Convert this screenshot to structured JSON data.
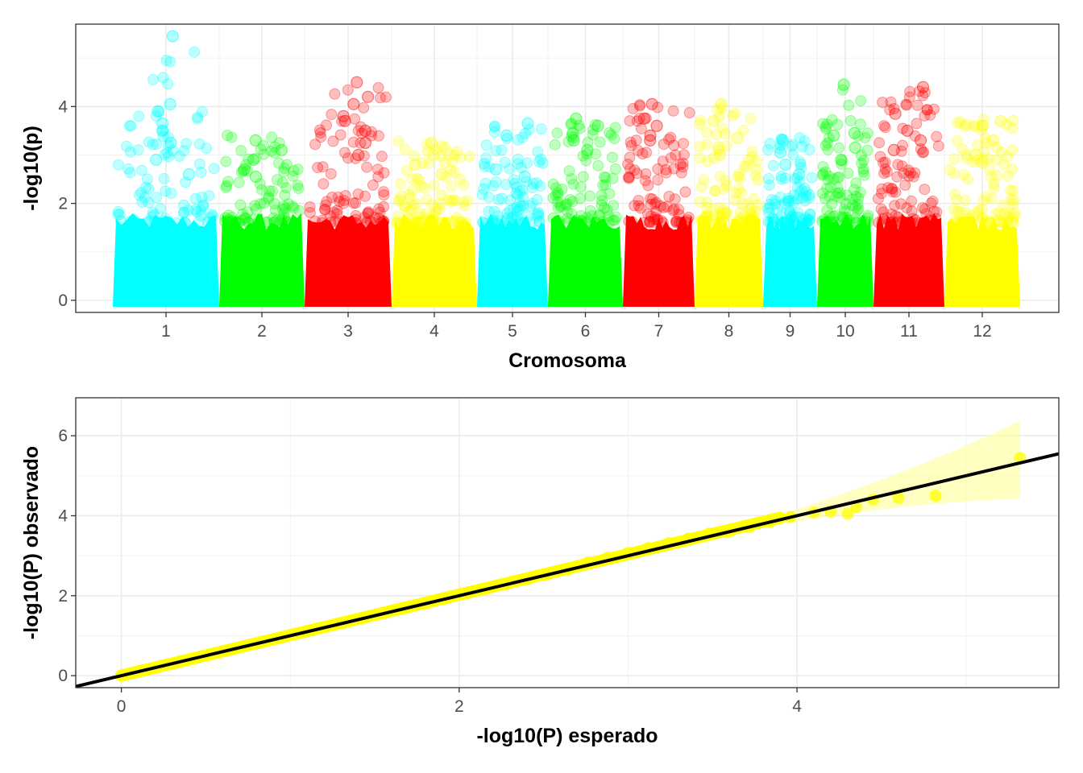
{
  "chart_data": [
    {
      "type": "scatter",
      "subtype": "manhattan",
      "xlabel": "Cromosoma",
      "ylabel": "-log10(p)",
      "ylim": [
        -0.25,
        5.7
      ],
      "yticks": [
        0,
        2,
        4
      ],
      "grid": true,
      "legend": "none",
      "chromosomes": [
        {
          "label": "1",
          "color": "#00FFFF",
          "peak": 5.45,
          "top_hits": [
            5.45,
            4.05,
            3.9,
            3.65,
            3.5,
            3.25,
            2.9,
            2.6
          ]
        },
        {
          "label": "2",
          "color": "#00FF00",
          "peak": 3.3,
          "top_hits": [
            3.3,
            3.1,
            2.9,
            2.7,
            2.55
          ]
        },
        {
          "label": "3",
          "color": "#FF0000",
          "peak": 4.5,
          "top_hits": [
            4.5,
            4.2,
            4.05,
            3.8,
            3.7,
            3.5,
            3.25,
            3.0
          ]
        },
        {
          "label": "4",
          "color": "#FFFF00",
          "peak": 3.25,
          "top_hits": [
            3.25,
            3.0,
            2.8,
            2.6
          ]
        },
        {
          "label": "5",
          "color": "#00FFFF",
          "peak": 3.65,
          "top_hits": [
            3.65,
            3.4,
            2.7,
            2.55
          ]
        },
        {
          "label": "6",
          "color": "#00FF00",
          "peak": 3.75,
          "top_hits": [
            3.75,
            3.6,
            3.45,
            3.3,
            3.1
          ]
        },
        {
          "label": "7",
          "color": "#FF0000",
          "peak": 4.05,
          "top_hits": [
            4.05,
            3.75,
            3.6,
            3.4,
            3.3
          ]
        },
        {
          "label": "8",
          "color": "#FFFF00",
          "peak": 4.05,
          "top_hits": [
            4.05,
            3.7,
            3.35,
            3.15,
            3.0
          ]
        },
        {
          "label": "9",
          "color": "#00FFFF",
          "peak": 3.3,
          "top_hits": [
            3.3,
            3.05,
            2.8,
            2.6
          ]
        },
        {
          "label": "10",
          "color": "#00FF00",
          "peak": 4.45,
          "top_hits": [
            4.45,
            3.45,
            3.4,
            3.15,
            2.9
          ]
        },
        {
          "label": "11",
          "color": "#FF0000",
          "peak": 4.4,
          "top_hits": [
            4.4,
            3.85,
            3.5,
            3.3,
            3.1
          ]
        },
        {
          "label": "12",
          "color": "#FFFF00",
          "peak": 3.7,
          "top_hits": [
            3.7,
            3.6,
            3.3,
            3.0,
            2.85
          ]
        }
      ]
    },
    {
      "type": "scatter",
      "subtype": "qq",
      "xlabel": "-log10(P) esperado",
      "ylabel": "-log10(P) observado",
      "xlim": [
        -0.27,
        5.55
      ],
      "ylim": [
        -0.3,
        6.95
      ],
      "xticks": [
        0,
        2,
        4
      ],
      "yticks": [
        0,
        2,
        4,
        6
      ],
      "grid": true,
      "legend": "none",
      "point_color": "#FFFF00",
      "reference_line": {
        "slope": 1.0,
        "intercept": 0.0,
        "color": "#000000"
      },
      "confidence_band_color": "#FFFF99",
      "tail_points": [
        {
          "x": 4.1,
          "y": 4.08
        },
        {
          "x": 4.2,
          "y": 4.1
        },
        {
          "x": 4.3,
          "y": 4.05
        },
        {
          "x": 4.35,
          "y": 4.22
        },
        {
          "x": 4.45,
          "y": 4.4
        },
        {
          "x": 4.6,
          "y": 4.45
        },
        {
          "x": 4.82,
          "y": 4.5
        },
        {
          "x": 5.32,
          "y": 5.45
        }
      ]
    }
  ]
}
